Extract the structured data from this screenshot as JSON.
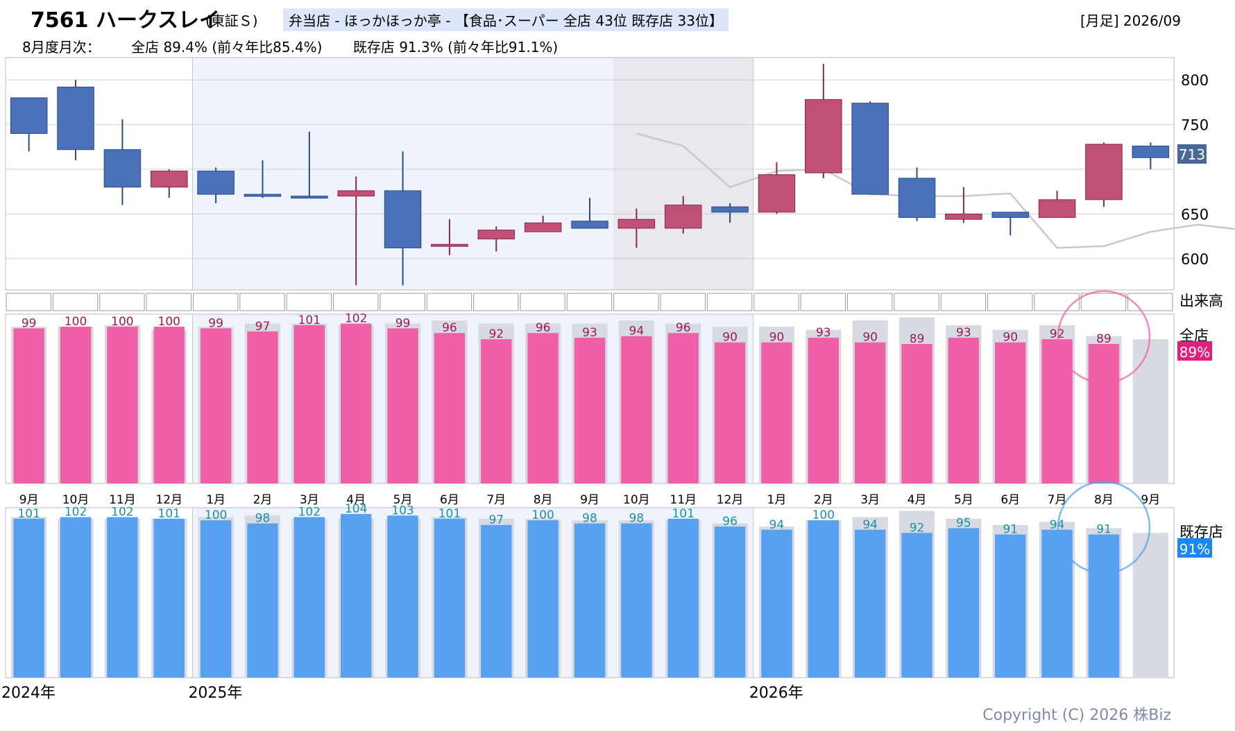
{
  "header": {
    "title_code": "7561 ハークスレイ",
    "title_market": "(東証Ｓ)",
    "title_tag": "弁当店 - ほっかほっか亭 - 【食品･スーパー 全店 43位 既存店 33位】",
    "period": "[月足] 2026/09",
    "monthly_label": "8月度月次：",
    "all_store_summary": "全店 89.4% (前々年比85.4%)",
    "existing_store_summary": "既存店 91.3% (前々年比91.1%)"
  },
  "labels": {
    "volume": "出来高",
    "all_store": "全店",
    "existing_store": "既存店",
    "all_badge": "89%",
    "existing_badge": "91%",
    "price_badge": "713"
  },
  "year_labels": [
    {
      "text": "2024年",
      "month_index": 0
    },
    {
      "text": "2025年",
      "month_index": 4
    },
    {
      "text": "2026年",
      "month_index": 16
    }
  ],
  "copyright": "Copyright (C) 2026 株Biz",
  "colors": {
    "up": "#c05078",
    "down": "#4a70b8",
    "all_bar": "#f060a8",
    "existing_bar": "#58a0f0",
    "prev_bar": "#d8dae2",
    "shade_2025": "#eef3fc",
    "shade_forecast": "#e8e8ee",
    "all_label": "#a01850",
    "existing_label": "#1890a8",
    "avg_line": "#c8c8d0"
  },
  "chart_data": {
    "type": "candlestick+bar",
    "months": [
      "9月",
      "10月",
      "11月",
      "12月",
      "1月",
      "2月",
      "3月",
      "4月",
      "5月",
      "6月",
      "7月",
      "8月",
      "9月",
      "10月",
      "11月",
      "12月",
      "1月",
      "2月",
      "3月",
      "4月",
      "5月",
      "6月",
      "7月",
      "8月",
      "9月"
    ],
    "price": {
      "ylim": [
        565,
        825
      ],
      "ticks": [
        600,
        650,
        700,
        750,
        800
      ],
      "tick_labels": [
        "600",
        "650",
        "",
        "750",
        "800"
      ],
      "ohlc": [
        {
          "o": 780,
          "h": 780,
          "l": 720,
          "c": 740
        },
        {
          "o": 792,
          "h": 800,
          "l": 710,
          "c": 722
        },
        {
          "o": 722,
          "h": 756,
          "l": 660,
          "c": 680
        },
        {
          "o": 680,
          "h": 700,
          "l": 668,
          "c": 698
        },
        {
          "o": 698,
          "h": 702,
          "l": 662,
          "c": 672
        },
        {
          "o": 672,
          "h": 710,
          "l": 668,
          "c": 670
        },
        {
          "o": 670,
          "h": 742,
          "l": 668,
          "c": 668
        },
        {
          "o": 670,
          "h": 692,
          "l": 570,
          "c": 676
        },
        {
          "o": 676,
          "h": 720,
          "l": 570,
          "c": 612
        },
        {
          "o": 616,
          "h": 644,
          "l": 604,
          "c": 616
        },
        {
          "o": 622,
          "h": 636,
          "l": 608,
          "c": 632
        },
        {
          "o": 630,
          "h": 648,
          "l": 630,
          "c": 640
        },
        {
          "o": 642,
          "h": 668,
          "l": 634,
          "c": 634
        },
        {
          "o": 634,
          "h": 656,
          "l": 612,
          "c": 644
        },
        {
          "o": 634,
          "h": 670,
          "l": 628,
          "c": 660
        },
        {
          "o": 658,
          "h": 662,
          "l": 640,
          "c": 652
        },
        {
          "o": 652,
          "h": 708,
          "l": 650,
          "c": 694
        },
        {
          "o": 696,
          "h": 818,
          "l": 690,
          "c": 778
        },
        {
          "o": 774,
          "h": 776,
          "l": 672,
          "c": 672
        },
        {
          "o": 690,
          "h": 702,
          "l": 642,
          "c": 646
        },
        {
          "o": 644,
          "h": 680,
          "l": 640,
          "c": 650
        },
        {
          "o": 652,
          "h": 652,
          "l": 626,
          "c": 646
        },
        {
          "o": 646,
          "h": 676,
          "l": 646,
          "c": 666
        },
        {
          "o": 666,
          "h": 730,
          "l": 658,
          "c": 728
        },
        {
          "o": 726,
          "h": 730,
          "l": 700,
          "c": 713
        }
      ],
      "avg_line": {
        "start_index": 13,
        "values": [
          740,
          726,
          680,
          698,
          700,
          672,
          670,
          670,
          673,
          612,
          614,
          630,
          638,
          632
        ]
      }
    },
    "all_store": {
      "values": [
        99,
        100,
        100,
        100,
        99,
        97,
        101,
        102,
        99,
        96,
        92,
        96,
        93,
        94,
        96,
        90,
        90,
        93,
        90,
        89,
        93,
        90,
        92,
        89,
        null
      ],
      "prev_year": [
        100,
        100,
        101,
        98,
        100,
        102,
        102,
        101,
        102,
        104,
        102,
        102,
        102,
        104,
        102,
        100,
        100,
        98,
        104,
        106,
        101,
        98,
        101,
        94,
        92
      ]
    },
    "existing_store": {
      "values": [
        101,
        102,
        102,
        101,
        100,
        98,
        102,
        104,
        103,
        101,
        97,
        100,
        98,
        98,
        101,
        96,
        94,
        100,
        94,
        92,
        95,
        91,
        94,
        91,
        null
      ],
      "prev_year": [
        102,
        101,
        101,
        101,
        102,
        103,
        101,
        101,
        101,
        102,
        101,
        101,
        100,
        100,
        100,
        98,
        96,
        100,
        102,
        106,
        101,
        97,
        99,
        95,
        92
      ]
    },
    "highlight_index": 23
  }
}
